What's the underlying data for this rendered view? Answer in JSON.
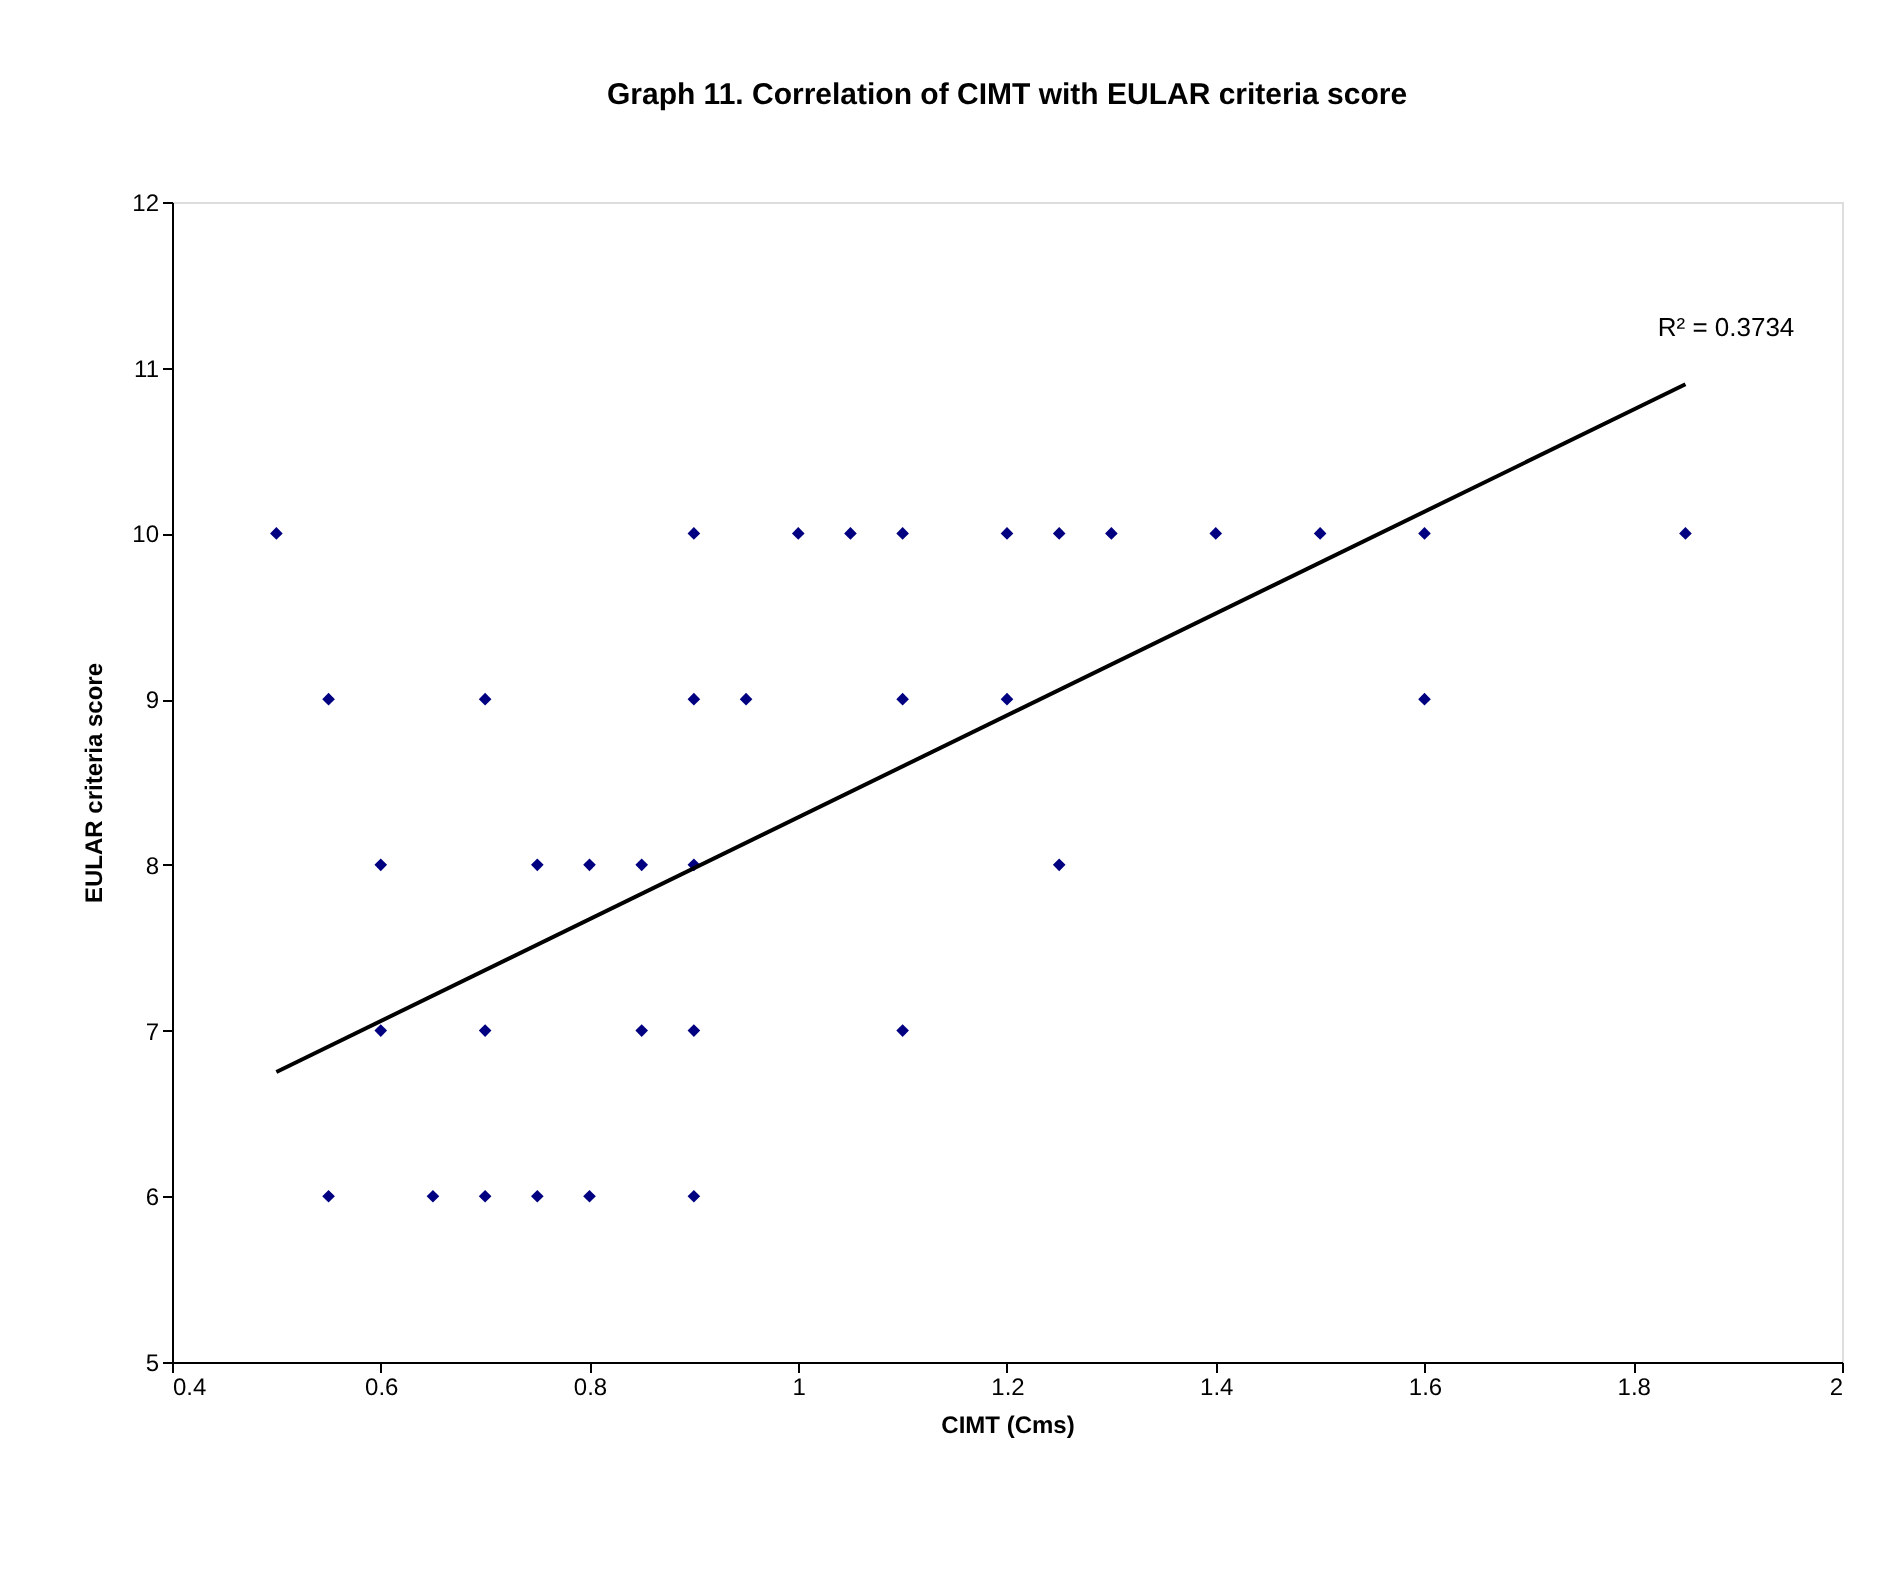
{
  "chart_data": {
    "type": "scatter",
    "title": "Graph 11. Correlation of CIMT with EULAR criteria score",
    "xlabel": "CIMT (Cms)",
    "ylabel": "EULAR criteria score",
    "xlim": [
      0.4,
      2
    ],
    "xticks": [
      0.4,
      0.6,
      0.8,
      1,
      1.2,
      1.4,
      1.6,
      1.8,
      2
    ],
    "ylim": [
      5,
      12
    ],
    "yticks": [
      5,
      6,
      7,
      8,
      9,
      10,
      11,
      12
    ],
    "grid": false,
    "marker": "diamond",
    "series": [
      {
        "color": "#000080",
        "x": [
          0.5,
          0.9,
          1.0,
          1.05,
          1.1,
          1.2,
          1.25,
          1.3,
          1.4,
          1.5,
          1.6,
          1.85,
          0.55,
          0.7,
          0.9,
          0.95,
          1.1,
          1.2,
          1.6,
          0.6,
          0.75,
          0.8,
          0.85,
          0.9,
          1.25,
          0.6,
          0.7,
          0.85,
          0.9,
          1.1,
          0.55,
          0.65,
          0.7,
          0.75,
          0.8,
          0.9
        ],
        "values": [
          10,
          10,
          10,
          10,
          10,
          10,
          10,
          10,
          10,
          10,
          10,
          10,
          9,
          9,
          9,
          9,
          9,
          9,
          9,
          8,
          8,
          8,
          8,
          8,
          8,
          7,
          7,
          7,
          7,
          7,
          6,
          6,
          6,
          6,
          6,
          6
        ]
      },
      {
        "type": "line",
        "color": "#000000",
        "line_style": "solid",
        "marker": "none",
        "x": [
          0.5,
          1.85
        ],
        "values": [
          6.75,
          10.9
        ]
      }
    ],
    "annotations": [
      "R² = 0.3734"
    ]
  }
}
